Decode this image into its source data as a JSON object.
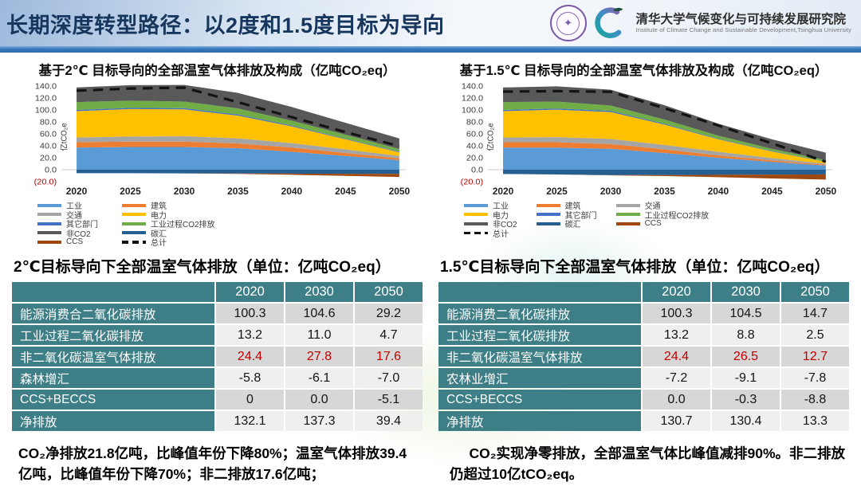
{
  "header": {
    "title": "长期深度转型路径：以2度和1.5度目标为导向",
    "institute_cn": "清华大学气候变化与可持续发展研究院",
    "institute_en": "Institute of Climate Change and Sustainable Development,Tsinghua University"
  },
  "chart_data": [
    {
      "type": "stacked-area",
      "title": "基于2℃ 目标导向的全部温室气体排放及构成（亿吨CO₂eq）",
      "ylabel": "亿tCO₂e",
      "ylim": [
        -20,
        140
      ],
      "yticks": [
        140,
        120,
        100,
        80,
        60,
        40,
        20,
        0,
        -20
      ],
      "x": [
        2020,
        2025,
        2030,
        2035,
        2040,
        2045,
        2050
      ],
      "legend_columns": 2,
      "series": [
        {
          "name": "工业",
          "color": "#5B9BD5",
          "values": [
            37,
            38,
            38,
            36,
            30,
            23,
            16
          ]
        },
        {
          "name": "建筑",
          "color": "#ED7D31",
          "values": [
            9,
            9,
            9,
            8,
            7,
            5,
            3
          ]
        },
        {
          "name": "交通",
          "color": "#A5A5A5",
          "values": [
            8,
            8.5,
            9,
            8.5,
            7.5,
            6,
            4
          ]
        },
        {
          "name": "电力",
          "color": "#FFC000",
          "values": [
            44,
            46,
            45,
            38,
            28,
            17,
            6
          ]
        },
        {
          "name": "其它部门",
          "color": "#4472C4",
          "values": [
            2,
            2,
            2,
            2,
            1.5,
            1,
            1
          ]
        },
        {
          "name": "工业过程CO2排放",
          "color": "#70AD47",
          "values": [
            13.2,
            12,
            11,
            10,
            8,
            6.5,
            4.7
          ]
        },
        {
          "name": "非CO2",
          "color": "#595959",
          "values": [
            24.4,
            26,
            27.8,
            26,
            23,
            20,
            17.6
          ]
        }
      ],
      "negative_series": [
        {
          "name": "碳汇",
          "color": "#255E91",
          "values": [
            -5.8,
            -5.9,
            -6.1,
            -6.3,
            -6.5,
            -6.8,
            -7
          ]
        },
        {
          "name": "CCS",
          "color": "#9E480E",
          "values": [
            0,
            0,
            0,
            -0.8,
            -2,
            -3.5,
            -5.1
          ]
        }
      ],
      "total": {
        "name": "总计",
        "values": [
          132.1,
          135.8,
          137.3,
          113,
          88,
          63,
          39.4
        ]
      }
    },
    {
      "type": "stacked-area",
      "title": "基于1.5℃ 目标导向的全部温室气体排放及构成（亿吨CO₂eq）",
      "ylabel": "亿tCO₂e",
      "ylim": [
        -20,
        140
      ],
      "yticks": [
        140,
        120,
        100,
        80,
        60,
        40,
        20,
        0,
        -20
      ],
      "x": [
        2020,
        2025,
        2030,
        2035,
        2040,
        2045,
        2050
      ],
      "legend_columns": 3,
      "series": [
        {
          "name": "工业",
          "color": "#5B9BD5",
          "values": [
            37,
            37,
            35,
            28,
            20,
            13,
            7
          ]
        },
        {
          "name": "建筑",
          "color": "#ED7D31",
          "values": [
            9,
            9,
            8,
            6,
            4,
            2.5,
            1.3
          ]
        },
        {
          "name": "交通",
          "color": "#A5A5A5",
          "values": [
            8,
            8.5,
            8.5,
            7.5,
            6,
            4,
            1.7
          ]
        },
        {
          "name": "电力",
          "color": "#FFC000",
          "values": [
            44,
            46,
            45,
            34,
            21,
            11,
            3
          ]
        },
        {
          "name": "其它部门",
          "color": "#4472C4",
          "values": [
            2,
            2,
            2,
            1.5,
            1,
            0.8,
            0.4
          ]
        },
        {
          "name": "工业过程CO2排放",
          "color": "#70AD47",
          "values": [
            13.2,
            11.5,
            8.8,
            7,
            5,
            3.5,
            2.5
          ]
        },
        {
          "name": "非CO2",
          "color": "#595959",
          "values": [
            24.4,
            25.5,
            26.5,
            24,
            20,
            16,
            12.7
          ]
        }
      ],
      "negative_series": [
        {
          "name": "碳汇",
          "color": "#255E91",
          "values": [
            -7.2,
            -8,
            -9.1,
            -8.9,
            -8.6,
            -8.2,
            -7.8
          ]
        },
        {
          "name": "CCS",
          "color": "#9E480E",
          "values": [
            0,
            0,
            -0.3,
            -1.8,
            -4,
            -6.5,
            -8.8
          ]
        }
      ],
      "total": {
        "name": "总计",
        "values": [
          130.7,
          131.5,
          130.4,
          103,
          74,
          44,
          13.3
        ]
      }
    }
  ],
  "tables": [
    {
      "title": "2℃目标导向下全部温室气体排放（单位：亿吨CO₂eq）",
      "columns": [
        "",
        "2020",
        "2030",
        "2050"
      ],
      "rows": [
        {
          "label": "能源消费合二氧化碳排放",
          "values": [
            "100.3",
            "104.6",
            "29.2"
          ],
          "red": false
        },
        {
          "label": "工业过程二氧化碳排放",
          "values": [
            "13.2",
            "11.0",
            "4.7"
          ],
          "red": false
        },
        {
          "label": "非二氧化碳温室气体排放",
          "values": [
            "24.4",
            "27.8",
            "17.6"
          ],
          "red": true
        },
        {
          "label": "森林增汇",
          "values": [
            "-5.8",
            "-6.1",
            "-7.0"
          ],
          "red": false
        },
        {
          "label": "CCS+BECCS",
          "values": [
            "0",
            "0.0",
            "-5.1"
          ],
          "red": false
        },
        {
          "label": "净排放",
          "values": [
            "132.1",
            "137.3",
            "39.4"
          ],
          "red": false
        }
      ]
    },
    {
      "title": "1.5℃目标导向下全部温室气体排放（单位：亿吨CO₂eq）",
      "columns": [
        "",
        "2020",
        "2030",
        "2050"
      ],
      "rows": [
        {
          "label": "能源消费二氧化碳排放",
          "values": [
            "100.3",
            "104.5",
            "14.7"
          ],
          "red": false
        },
        {
          "label": "工业过程二氧化碳排放",
          "values": [
            "13.2",
            "8.8",
            "2.5"
          ],
          "red": false
        },
        {
          "label": "非二氧化碳温室气体排放",
          "values": [
            "24.4",
            "26.5",
            "12.7"
          ],
          "red": true
        },
        {
          "label": "农林业增汇",
          "values": [
            "-7.2",
            "-9.1",
            "-7.8"
          ],
          "red": false
        },
        {
          "label": "CCS+BECCS",
          "values": [
            "0.0",
            "-0.3",
            "-8.8"
          ],
          "red": false
        },
        {
          "label": "净排放",
          "values": [
            "130.7",
            "130.4",
            "13.3"
          ],
          "red": false
        }
      ]
    }
  ],
  "notes": {
    "left": "CO₂净排放21.8亿吨，比峰值年份下降80%；温室气体排放39.4亿吨，比峰值年份下降70%；非二排放17.6亿吨；",
    "right": "CO₂实现净零排放，全部温室气体比峰值减排90%。非二排放仍超过10亿tCO₂eq。"
  },
  "colors": {
    "accent_teal": "#3E7E87",
    "red_value": "#C00000",
    "title_navy": "#17365D",
    "divider_blue": "#2E74B5"
  }
}
